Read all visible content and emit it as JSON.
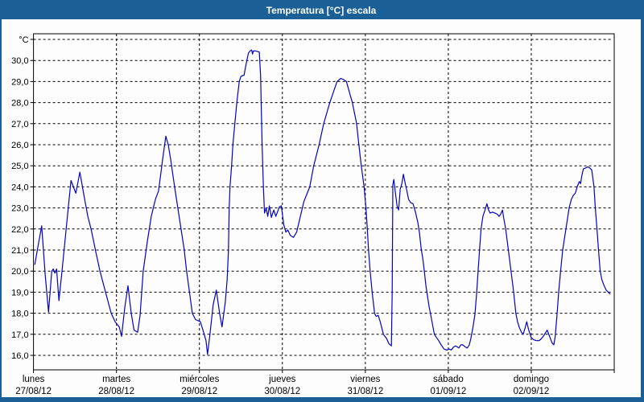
{
  "window": {
    "title": "Temperatura [°C] escala",
    "titlebar_color": "#1a6096",
    "frame_color": "#1a6096"
  },
  "chart_data": {
    "type": "line",
    "title": "Temperatura [°C] escala",
    "grid": "dashed",
    "legend": "none",
    "y_axis": {
      "unit": "°C",
      "top_gridline_value": 31,
      "axis_top_value": 31.3,
      "axis_bottom_value": 15.3,
      "ticks": [
        {
          "value": 30,
          "label": "30,0"
        },
        {
          "value": 29,
          "label": "29,0"
        },
        {
          "value": 28,
          "label": "28,0"
        },
        {
          "value": 27,
          "label": "27,0"
        },
        {
          "value": 26,
          "label": "26,0"
        },
        {
          "value": 25,
          "label": "25,0"
        },
        {
          "value": 24,
          "label": "24,0"
        },
        {
          "value": 23,
          "label": "23,0"
        },
        {
          "value": 22,
          "label": "22,0"
        },
        {
          "value": 21,
          "label": "21,0"
        },
        {
          "value": 20,
          "label": "20,0"
        },
        {
          "value": 19,
          "label": "19,0"
        },
        {
          "value": 18,
          "label": "18,0"
        },
        {
          "value": 17,
          "label": "17,0"
        },
        {
          "value": 16,
          "label": "16,0"
        }
      ]
    },
    "x_axis": {
      "span_days": 7,
      "days": [
        {
          "name": "lunes",
          "date": "27/08/12"
        },
        {
          "name": "martes",
          "date": "28/08/12"
        },
        {
          "name": "miércoles",
          "date": "29/08/12"
        },
        {
          "name": "jueves",
          "date": "30/08/12"
        },
        {
          "name": "viernes",
          "date": "31/08/12"
        },
        {
          "name": "sábado",
          "date": "01/09/12"
        },
        {
          "name": "domingo",
          "date": "02/09/12"
        }
      ]
    },
    "series": [
      {
        "name": "Temperatura",
        "color": "#0202c8",
        "points_day_temp": [
          [
            0.016,
            20.3
          ],
          [
            0.055,
            21.2
          ],
          [
            0.099,
            22.15
          ],
          [
            0.142,
            19.8
          ],
          [
            0.181,
            18.05
          ],
          [
            0.22,
            20.0
          ],
          [
            0.239,
            20.1
          ],
          [
            0.258,
            19.9
          ],
          [
            0.278,
            20.1
          ],
          [
            0.307,
            18.6
          ],
          [
            0.346,
            20.1
          ],
          [
            0.394,
            22.0
          ],
          [
            0.452,
            24.3
          ],
          [
            0.481,
            24.0
          ],
          [
            0.51,
            23.7
          ],
          [
            0.559,
            24.7
          ],
          [
            0.617,
            23.4
          ],
          [
            0.655,
            22.6
          ],
          [
            0.694,
            22.0
          ],
          [
            0.752,
            20.9
          ],
          [
            0.801,
            20.0
          ],
          [
            0.868,
            19.0
          ],
          [
            0.936,
            18.0
          ],
          [
            0.984,
            17.6
          ],
          [
            1.033,
            17.35
          ],
          [
            1.062,
            16.9
          ],
          [
            1.101,
            18.3
          ],
          [
            1.139,
            19.3
          ],
          [
            1.178,
            18.0
          ],
          [
            1.212,
            17.2
          ],
          [
            1.256,
            17.1
          ],
          [
            1.285,
            17.9
          ],
          [
            1.323,
            20.0
          ],
          [
            1.372,
            21.4
          ],
          [
            1.42,
            22.6
          ],
          [
            1.469,
            23.4
          ],
          [
            1.507,
            23.8
          ],
          [
            1.527,
            24.4
          ],
          [
            1.556,
            25.3
          ],
          [
            1.595,
            26.4
          ],
          [
            1.624,
            26.0
          ],
          [
            1.653,
            25.3
          ],
          [
            1.701,
            24.0
          ],
          [
            1.74,
            23.0
          ],
          [
            1.779,
            22.0
          ],
          [
            1.817,
            21.0
          ],
          [
            1.846,
            20.0
          ],
          [
            1.88,
            19.0
          ],
          [
            1.914,
            18.0
          ],
          [
            1.953,
            17.7
          ],
          [
            2.011,
            17.6
          ],
          [
            2.05,
            17.1
          ],
          [
            2.079,
            16.7
          ],
          [
            2.098,
            16.05
          ],
          [
            2.127,
            17.0
          ],
          [
            2.166,
            18.4
          ],
          [
            2.204,
            19.1
          ],
          [
            2.243,
            18.0
          ],
          [
            2.272,
            17.35
          ],
          [
            2.311,
            18.5
          ],
          [
            2.335,
            19.6
          ],
          [
            2.35,
            21.0
          ],
          [
            2.359,
            23.0
          ],
          [
            2.369,
            24.0
          ],
          [
            2.388,
            25.0
          ],
          [
            2.403,
            26.0
          ],
          [
            2.427,
            27.0
          ],
          [
            2.451,
            28.0
          ],
          [
            2.48,
            29.0
          ],
          [
            2.5,
            29.25
          ],
          [
            2.538,
            29.3
          ],
          [
            2.562,
            29.8
          ],
          [
            2.591,
            30.35
          ],
          [
            2.611,
            30.45
          ],
          [
            2.63,
            30.5
          ],
          [
            2.64,
            30.3
          ],
          [
            2.65,
            30.45
          ],
          [
            2.679,
            30.45
          ],
          [
            2.722,
            30.4
          ],
          [
            2.737,
            29.3
          ],
          [
            2.756,
            26.0
          ],
          [
            2.771,
            24.0
          ],
          [
            2.785,
            22.75
          ],
          [
            2.804,
            23.0
          ],
          [
            2.824,
            22.6
          ],
          [
            2.843,
            23.1
          ],
          [
            2.867,
            22.55
          ],
          [
            2.896,
            22.9
          ],
          [
            2.921,
            22.6
          ],
          [
            2.964,
            23.05
          ],
          [
            2.988,
            23.1
          ],
          [
            3.017,
            22.2
          ],
          [
            3.042,
            21.85
          ],
          [
            3.066,
            21.95
          ],
          [
            3.095,
            21.7
          ],
          [
            3.133,
            21.6
          ],
          [
            3.172,
            21.85
          ],
          [
            3.211,
            22.5
          ],
          [
            3.259,
            23.3
          ],
          [
            3.33,
            24.0
          ],
          [
            3.378,
            25.0
          ],
          [
            3.443,
            26.0
          ],
          [
            3.498,
            27.0
          ],
          [
            3.572,
            28.0
          ],
          [
            3.659,
            29.0
          ],
          [
            3.704,
            29.15
          ],
          [
            3.733,
            29.1
          ],
          [
            3.772,
            29.0
          ],
          [
            3.843,
            28.0
          ],
          [
            3.895,
            27.0
          ],
          [
            3.922,
            26.0
          ],
          [
            3.951,
            25.0
          ],
          [
            3.985,
            24.0
          ],
          [
            4.007,
            23.0
          ],
          [
            4.024,
            22.0
          ],
          [
            4.038,
            21.0
          ],
          [
            4.058,
            20.0
          ],
          [
            4.082,
            19.0
          ],
          [
            4.111,
            18.0
          ],
          [
            4.13,
            17.85
          ],
          [
            4.155,
            17.9
          ],
          [
            4.179,
            17.6
          ],
          [
            4.218,
            17.0
          ],
          [
            4.256,
            16.8
          ],
          [
            4.285,
            16.55
          ],
          [
            4.314,
            16.45
          ],
          [
            4.324,
            19.0
          ],
          [
            4.331,
            24.1
          ],
          [
            4.343,
            24.35
          ],
          [
            4.363,
            23.7
          ],
          [
            4.382,
            23.1
          ],
          [
            4.401,
            22.9
          ],
          [
            4.421,
            23.9
          ],
          [
            4.44,
            24.15
          ],
          [
            4.459,
            24.6
          ],
          [
            4.479,
            24.2
          ],
          [
            4.498,
            23.85
          ],
          [
            4.522,
            23.4
          ],
          [
            4.546,
            23.25
          ],
          [
            4.575,
            23.2
          ],
          [
            4.604,
            22.8
          ],
          [
            4.633,
            22.3
          ],
          [
            4.653,
            21.8
          ],
          [
            4.672,
            21.1
          ],
          [
            4.692,
            20.6
          ],
          [
            4.711,
            20.0
          ],
          [
            4.73,
            19.3
          ],
          [
            4.75,
            18.8
          ],
          [
            4.769,
            18.3
          ],
          [
            4.789,
            17.9
          ],
          [
            4.813,
            17.4
          ],
          [
            4.832,
            17.0
          ],
          [
            4.856,
            16.85
          ],
          [
            4.885,
            16.7
          ],
          [
            4.914,
            16.5
          ],
          [
            4.948,
            16.3
          ],
          [
            4.982,
            16.25
          ],
          [
            5.011,
            16.3
          ],
          [
            5.035,
            16.25
          ],
          [
            5.064,
            16.4
          ],
          [
            5.088,
            16.45
          ],
          [
            5.108,
            16.4
          ],
          [
            5.127,
            16.35
          ],
          [
            5.151,
            16.5
          ],
          [
            5.175,
            16.5
          ],
          [
            5.204,
            16.4
          ],
          [
            5.229,
            16.35
          ],
          [
            5.253,
            16.5
          ],
          [
            5.272,
            16.8
          ],
          [
            5.296,
            17.3
          ],
          [
            5.321,
            17.95
          ],
          [
            5.343,
            19.0
          ],
          [
            5.359,
            20.0
          ],
          [
            5.376,
            21.0
          ],
          [
            5.395,
            22.0
          ],
          [
            5.417,
            22.6
          ],
          [
            5.442,
            22.9
          ],
          [
            5.466,
            23.2
          ],
          [
            5.485,
            22.9
          ],
          [
            5.505,
            22.75
          ],
          [
            5.534,
            22.8
          ],
          [
            5.563,
            22.75
          ],
          [
            5.592,
            22.7
          ],
          [
            5.611,
            22.6
          ],
          [
            5.631,
            22.7
          ],
          [
            5.653,
            22.9
          ],
          [
            5.669,
            22.5
          ],
          [
            5.692,
            22.0
          ],
          [
            5.724,
            21.0
          ],
          [
            5.756,
            20.0
          ],
          [
            5.788,
            19.0
          ],
          [
            5.814,
            18.0
          ],
          [
            5.834,
            17.6
          ],
          [
            5.858,
            17.3
          ],
          [
            5.882,
            17.1
          ],
          [
            5.902,
            17.0
          ],
          [
            5.926,
            17.3
          ],
          [
            5.945,
            17.6
          ],
          [
            5.969,
            17.2
          ],
          [
            5.998,
            16.85
          ],
          [
            6.027,
            16.75
          ],
          [
            6.061,
            16.7
          ],
          [
            6.095,
            16.7
          ],
          [
            6.124,
            16.8
          ],
          [
            6.153,
            16.95
          ],
          [
            6.192,
            17.2
          ],
          [
            6.221,
            16.9
          ],
          [
            6.25,
            16.6
          ],
          [
            6.272,
            16.5
          ],
          [
            6.289,
            16.9
          ],
          [
            6.308,
            17.8
          ],
          [
            6.33,
            19.0
          ],
          [
            6.354,
            20.0
          ],
          [
            6.379,
            21.0
          ],
          [
            6.418,
            22.0
          ],
          [
            6.456,
            23.0
          ],
          [
            6.483,
            23.4
          ],
          [
            6.507,
            23.6
          ],
          [
            6.531,
            23.7
          ],
          [
            6.553,
            24.0
          ],
          [
            6.579,
            24.25
          ],
          [
            6.594,
            24.15
          ],
          [
            6.608,
            24.5
          ],
          [
            6.628,
            24.85
          ],
          [
            6.657,
            24.9
          ],
          [
            6.681,
            24.95
          ],
          [
            6.705,
            24.9
          ],
          [
            6.729,
            24.8
          ],
          [
            6.756,
            24.0
          ],
          [
            6.772,
            23.0
          ],
          [
            6.792,
            22.0
          ],
          [
            6.811,
            21.0
          ],
          [
            6.831,
            20.0
          ],
          [
            6.85,
            19.6
          ],
          [
            6.874,
            19.35
          ],
          [
            6.903,
            19.1
          ],
          [
            6.928,
            19.0
          ],
          [
            6.952,
            18.9
          ]
        ]
      }
    ]
  }
}
